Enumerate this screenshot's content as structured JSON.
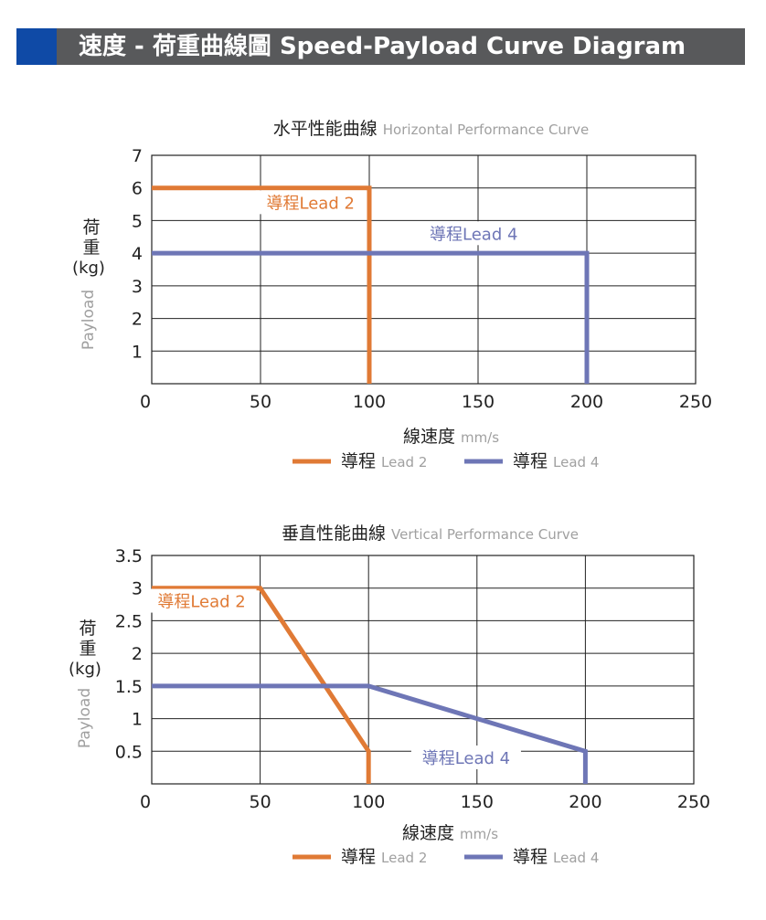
{
  "header": {
    "title": "速度 - 荷重曲線圖 Speed-Payload Curve Diagram",
    "accent_color": "#0f4aa6",
    "bar_color": "#58595b"
  },
  "colors": {
    "lead2": "#e07a35",
    "lead4": "#6e76b6",
    "grid": "#222222",
    "muted": "#a0a0a0"
  },
  "chart_data": [
    {
      "type": "line",
      "title_zh": "水平性能曲線",
      "title_en": "Horizontal Performance Curve",
      "xlabel_zh": "線速度",
      "xlabel_unit": "mm/s",
      "ylabel_zh": "荷重",
      "ylabel_unit": "(kg)",
      "ylabel_en": "Payload",
      "xlim": [
        0,
        250
      ],
      "ylim": [
        0,
        7
      ],
      "x_ticks": [
        0,
        50,
        100,
        150,
        200,
        250
      ],
      "y_ticks": [
        1,
        2,
        3,
        4,
        5,
        6,
        7
      ],
      "y_tick_labels": [
        "1",
        "2",
        "3",
        "4",
        "5",
        "6",
        "7"
      ],
      "grid": true,
      "series": [
        {
          "name": "導程Lead 2",
          "legend_zh": "導程",
          "legend_en": "Lead 2",
          "color": "#e07a35",
          "points": [
            [
              0,
              6
            ],
            [
              100,
              6
            ],
            [
              100,
              0
            ]
          ]
        },
        {
          "name": "導程Lead 4",
          "legend_zh": "導程",
          "legend_en": "Lead 4",
          "color": "#6e76b6",
          "points": [
            [
              0,
              4
            ],
            [
              200,
              4
            ],
            [
              200,
              0
            ]
          ]
        }
      ],
      "annotations": [
        {
          "text": "導程Lead 2",
          "x": 73,
          "y": 5.45,
          "series": 0
        },
        {
          "text": "導程Lead 4",
          "x": 148,
          "y": 4.5,
          "series": 1
        }
      ]
    },
    {
      "type": "line",
      "title_zh": "垂直性能曲線",
      "title_en": "Vertical Performance Curve",
      "xlabel_zh": "線速度",
      "xlabel_unit": "mm/s",
      "ylabel_zh": "荷重",
      "ylabel_unit": "(kg)",
      "ylabel_en": "Payload",
      "xlim": [
        0,
        250
      ],
      "ylim": [
        0,
        3.5
      ],
      "x_ticks": [
        0,
        50,
        100,
        150,
        200,
        250
      ],
      "y_ticks": [
        0.5,
        1,
        1.5,
        2,
        2.5,
        3,
        3.5
      ],
      "y_tick_labels": [
        "0.5",
        "1",
        "1.5",
        "2",
        "2.5",
        "3",
        "3.5"
      ],
      "grid": true,
      "series": [
        {
          "name": "導程Lead 2",
          "legend_zh": "導程",
          "legend_en": "Lead 2",
          "color": "#e07a35",
          "points": [
            [
              0,
              3
            ],
            [
              50,
              3
            ],
            [
              100,
              0.5
            ],
            [
              100,
              0
            ]
          ]
        },
        {
          "name": "導程Lead 4",
          "legend_zh": "導程",
          "legend_en": "Lead 4",
          "color": "#6e76b6",
          "points": [
            [
              0,
              1.5
            ],
            [
              100,
              1.5
            ],
            [
              200,
              0.5
            ],
            [
              200,
              0
            ]
          ]
        }
      ],
      "annotations": [
        {
          "text": "導程Lead 2",
          "x": 23,
          "y": 2.75,
          "series": 0
        },
        {
          "text": "導程Lead 4",
          "x": 145,
          "y": 0.35,
          "series": 1
        }
      ]
    }
  ]
}
